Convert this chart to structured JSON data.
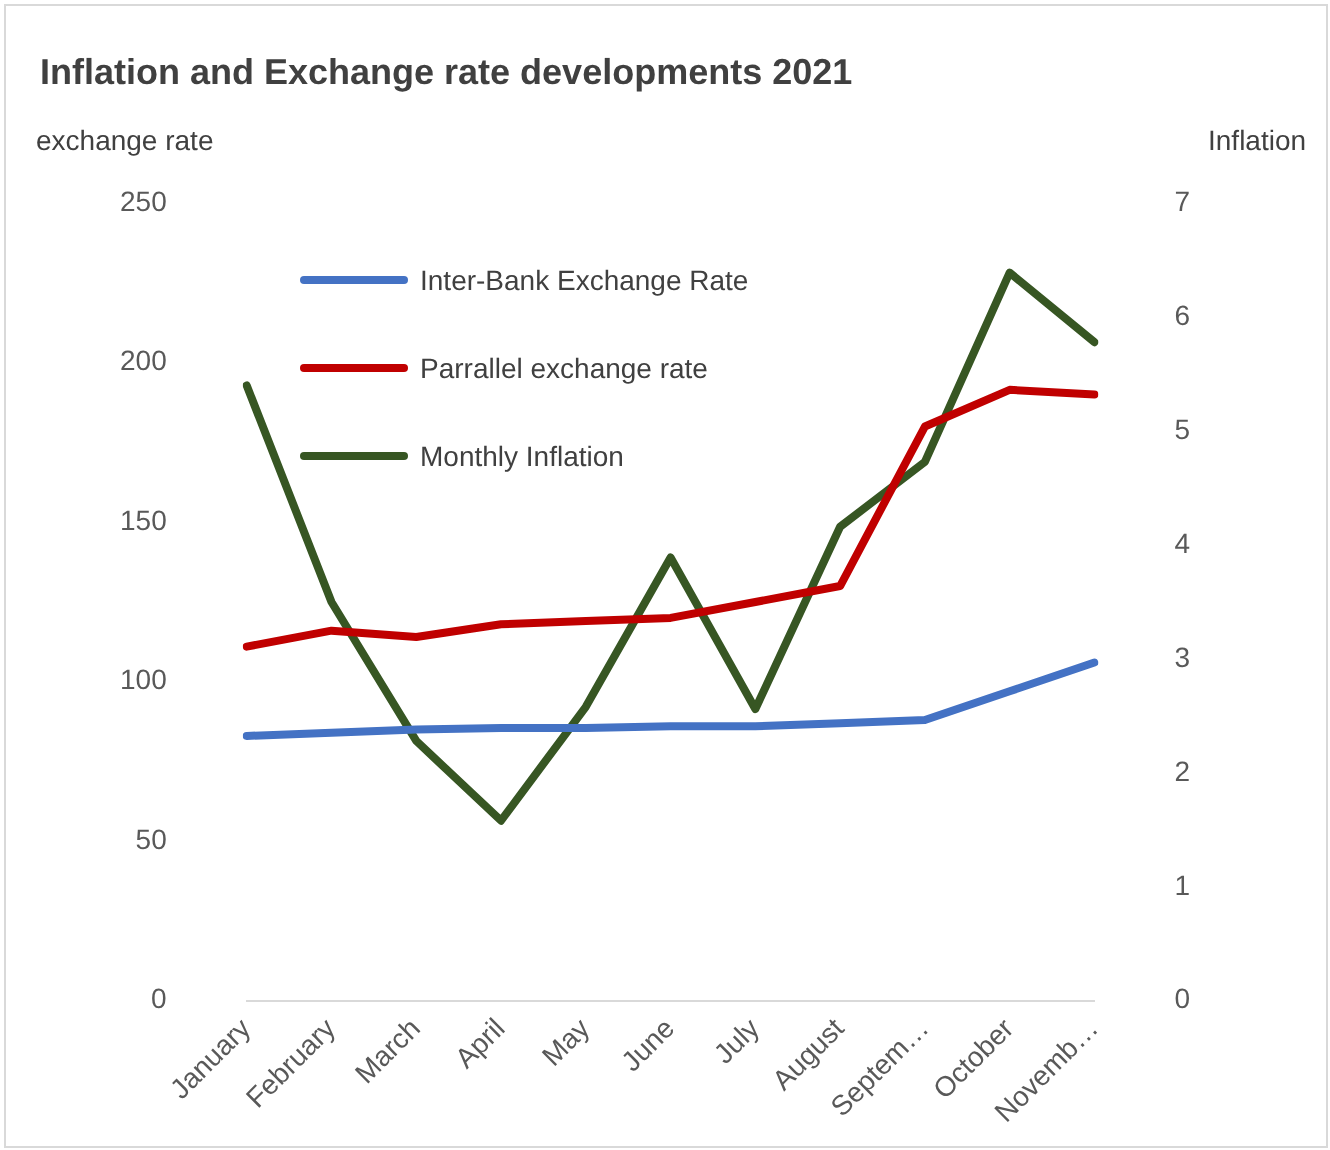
{
  "chart_data": {
    "type": "line",
    "title": "Inflation and Exchange rate developments 2021",
    "ylabel": "exchange rate",
    "y2label": "Inflation",
    "categories": [
      "January",
      "February",
      "March",
      "April",
      "May",
      "June",
      "July",
      "August",
      "Septem…",
      "October",
      "Novemb…"
    ],
    "series": [
      {
        "name": "Inter-Bank Exchange Rate",
        "color": "#4472c4",
        "values": [
          83,
          84,
          85,
          85.5,
          85.5,
          86,
          86,
          87,
          88,
          97,
          106
        ]
      },
      {
        "name": "Parrallel exchange rate",
        "color": "#c00000",
        "values": [
          111,
          116,
          114,
          118,
          119,
          120,
          125,
          130,
          180,
          191.5,
          190
        ]
      },
      {
        "name": "Monthly  Inflation",
        "color": "#375623",
        "axis": "y2",
        "values": [
          5.4,
          3.5,
          2.28,
          1.58,
          2.58,
          3.89,
          2.56,
          4.16,
          4.73,
          6.39,
          5.78
        ]
      }
    ],
    "ylim": [
      0,
      250
    ],
    "yticks": [
      0,
      50,
      100,
      150,
      200,
      250
    ],
    "y2lim": [
      0,
      7
    ],
    "y2ticks": [
      0,
      1,
      2,
      3,
      4,
      5,
      6,
      7
    ],
    "grid": false,
    "legend": "top left",
    "marker": "none",
    "line_style": "solid"
  }
}
